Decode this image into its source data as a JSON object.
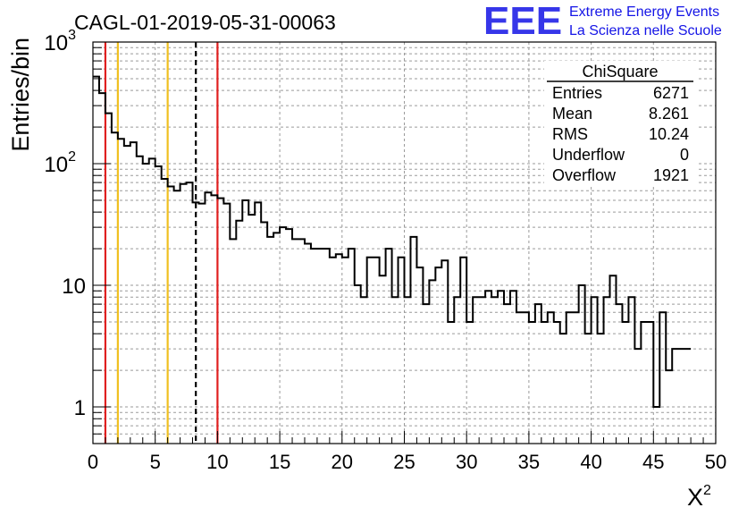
{
  "chart_data": {
    "type": "histogram",
    "title": "CAGL-01-2019-05-31-00063",
    "xlabel": "X",
    "xlabel_sup": "2",
    "ylabel": "Entries/bin",
    "xlim": [
      0,
      50
    ],
    "ylim": [
      0.5,
      1000
    ],
    "y_scale": "log",
    "grid": true,
    "x_ticks": [
      0,
      5,
      10,
      15,
      20,
      25,
      30,
      35,
      40,
      45,
      50
    ],
    "x_tick_labels": [
      "0",
      "5",
      "10",
      "15",
      "20",
      "25",
      "30",
      "35",
      "40",
      "45",
      "50"
    ],
    "y_ticks": [
      {
        "value": 1,
        "label": "1",
        "sup": ""
      },
      {
        "value": 10,
        "label": "10",
        "sup": ""
      },
      {
        "value": 100,
        "label": "10",
        "sup": "2"
      },
      {
        "value": 1000,
        "label": "10",
        "sup": "3"
      }
    ],
    "bin_width": 0.5,
    "bin_start": 0,
    "values": [
      520,
      380,
      260,
      180,
      160,
      140,
      150,
      115,
      100,
      110,
      95,
      75,
      65,
      60,
      68,
      70,
      48,
      47,
      58,
      55,
      52,
      47,
      24,
      34,
      50,
      38,
      48,
      33,
      25,
      27,
      30,
      29,
      24,
      24,
      22,
      20,
      20,
      20,
      17,
      18,
      17,
      20,
      10,
      8,
      17,
      17,
      12,
      20,
      8,
      17,
      8,
      25,
      14,
      7,
      11,
      14,
      16,
      5,
      8,
      17,
      5,
      8,
      8,
      9,
      8,
      9,
      7,
      9,
      6,
      6,
      5,
      7,
      5,
      6,
      5,
      4,
      6,
      6,
      10,
      4,
      8,
      4,
      8,
      12,
      7,
      5,
      8,
      3,
      5,
      5,
      1,
      6,
      2,
      3,
      3,
      3
    ],
    "vertical_lines": [
      {
        "x": 1,
        "color": "#e02020",
        "style": "solid"
      },
      {
        "x": 2,
        "color": "#f0c020",
        "style": "solid"
      },
      {
        "x": 6,
        "color": "#f0c020",
        "style": "solid"
      },
      {
        "x": 8.261,
        "color": "#000000",
        "style": "dashed"
      },
      {
        "x": 10,
        "color": "#e02020",
        "style": "solid"
      }
    ],
    "stats_box": {
      "title": "ChiSquare",
      "rows": [
        {
          "label": "Entries",
          "value": "6271"
        },
        {
          "label": "Mean",
          "value": "8.261"
        },
        {
          "label": "RMS",
          "value": "10.24"
        },
        {
          "label": "Underflow",
          "value": "0"
        },
        {
          "label": "Overflow",
          "value": "1921"
        }
      ]
    }
  },
  "logo": {
    "text": "EEE",
    "line1": "Extreme Energy Events",
    "line2": "La Scienza nelle Scuole",
    "color": "#1414e6"
  }
}
